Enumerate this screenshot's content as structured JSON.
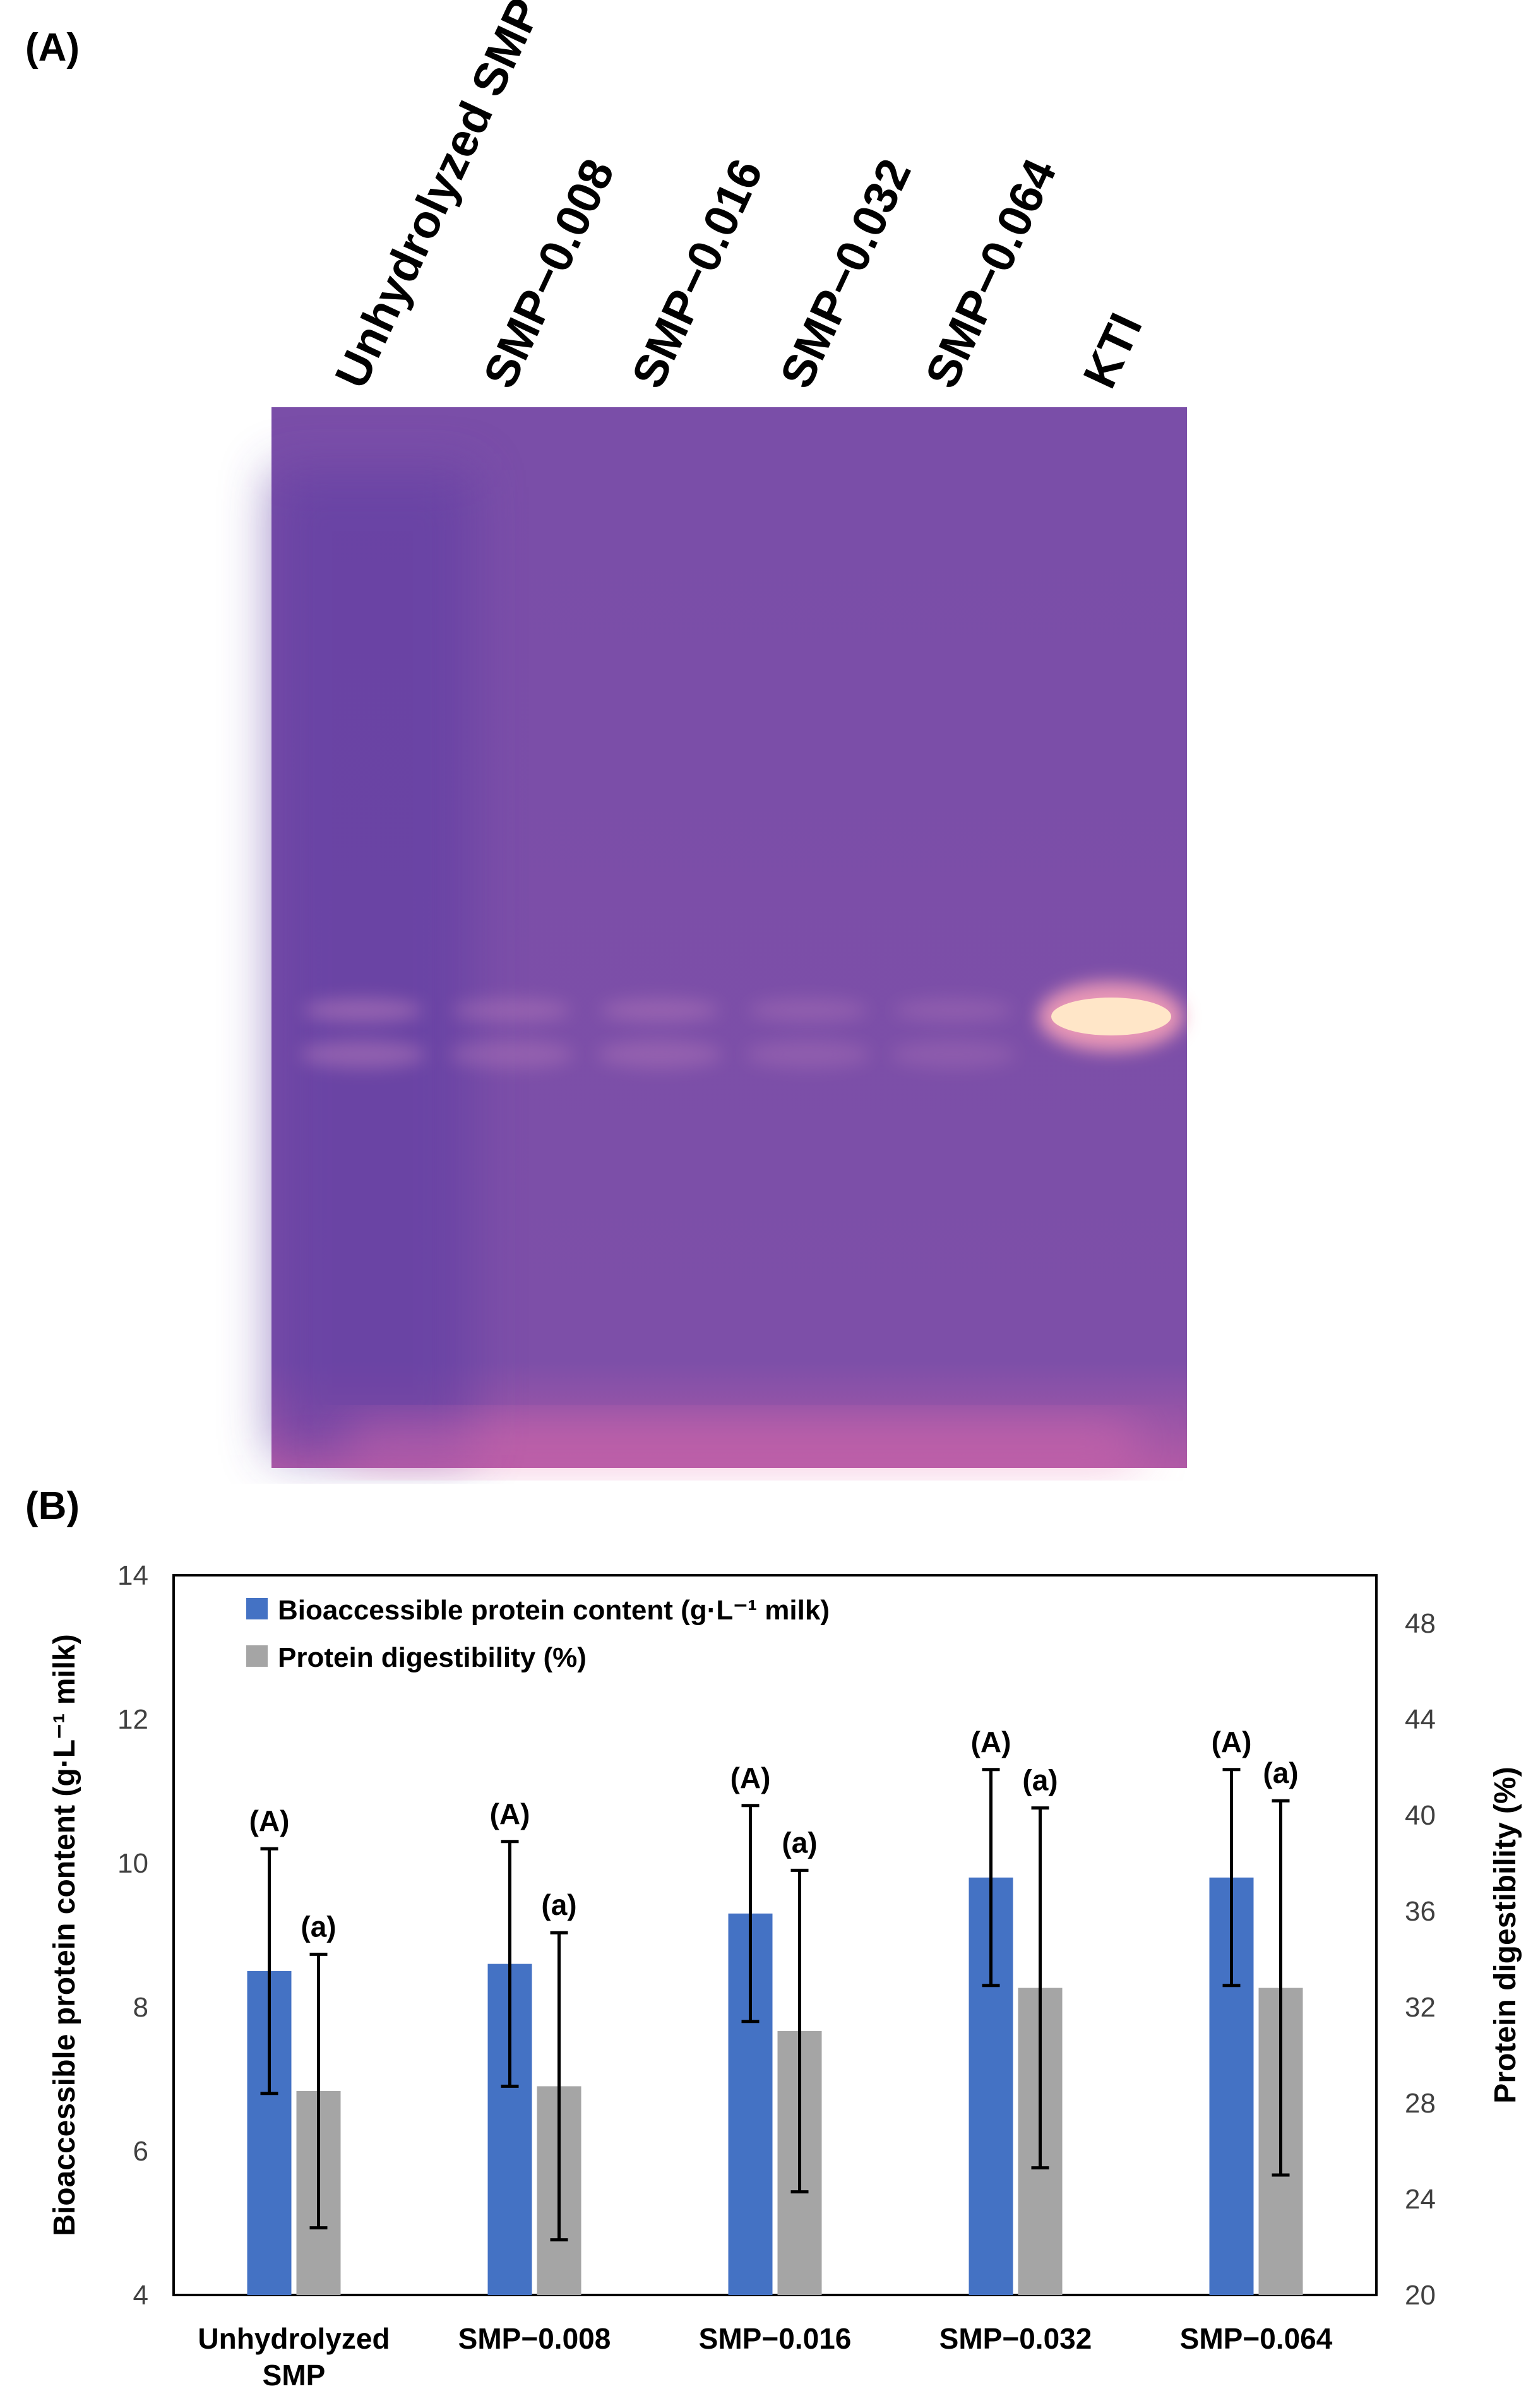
{
  "panel_a": {
    "label": "(A)",
    "lane_labels": [
      "Unhydrolyzed SMP",
      "SMP−0.008",
      "SMP−0.016",
      "SMP−0.032",
      "SMP−0.064",
      "KTI"
    ],
    "band_intensity": [
      0.35,
      0.25,
      0.25,
      0.2,
      0.18,
      1.0
    ]
  },
  "panel_b": {
    "label": "(B)"
  },
  "colors": {
    "bioaccessible": "#4472C4",
    "digestibility": "#A5A5A5",
    "gel_bg": "#7B4FA6",
    "band": "#FFE6C8"
  },
  "chart_data": {
    "type": "bar",
    "categories": [
      [
        "Unhydrolyzed",
        "SMP"
      ],
      [
        "SMP−0.008"
      ],
      [
        "SMP−0.016"
      ],
      [
        "SMP−0.032"
      ],
      [
        "SMP−0.064"
      ]
    ],
    "series": [
      {
        "name": "Bioaccessible protein content (g·L⁻¹ milk)",
        "axis": "left",
        "values": [
          8.5,
          8.6,
          9.3,
          9.8,
          9.8
        ],
        "error": [
          1.7,
          1.7,
          1.5,
          1.5,
          1.5
        ],
        "letters": [
          "(A)",
          "(A)",
          "(A)",
          "(A)",
          "(A)"
        ]
      },
      {
        "name": "Protein digestibility (%)",
        "axis": "right",
        "values": [
          28.5,
          28.7,
          31.0,
          32.8,
          32.8
        ],
        "error": [
          5.7,
          6.4,
          6.7,
          7.5,
          7.8
        ],
        "letters": [
          "(a)",
          "(a)",
          "(a)",
          "(a)",
          "(a)"
        ]
      }
    ],
    "ylabel_left": "Bioaccessible protein content (g·L⁻¹ milk)",
    "ylabel_right": "Protein digestibility (%)",
    "ylim_left": [
      4,
      14
    ],
    "yticks_left": [
      4,
      6,
      8,
      10,
      12,
      14
    ],
    "ylim_right": [
      20,
      50
    ],
    "yticks_right": [
      20,
      24,
      28,
      32,
      36,
      40,
      44,
      48
    ],
    "legend_position": "top-left",
    "grid": false
  }
}
